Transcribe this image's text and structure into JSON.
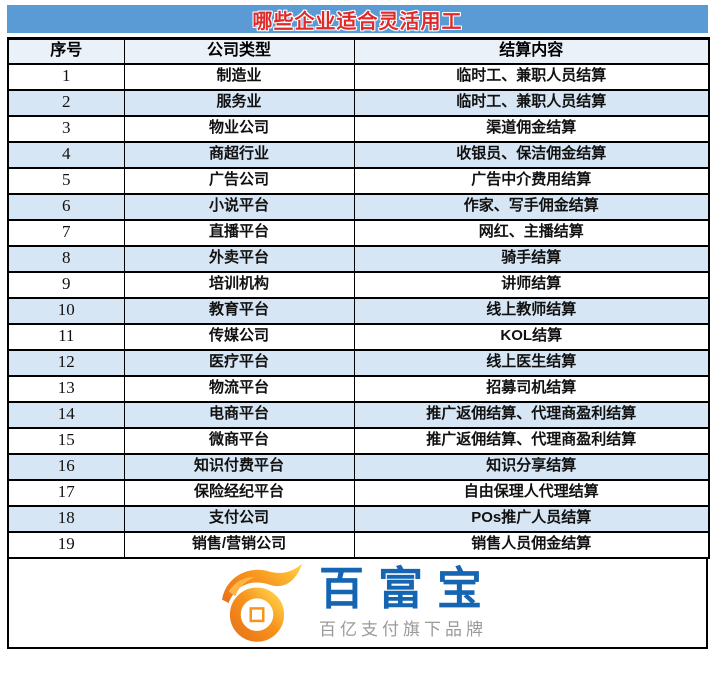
{
  "title": "哪些企业适合灵活用工",
  "colors": {
    "banner_bg": "#5B9BD5",
    "banner_text": "#E02A2A",
    "header_bg": "#EAF1F9",
    "row_alt_bg": "#D7E6F4",
    "border": "#000000",
    "brand_blue": "#1565B2",
    "slogan_gray": "#9A9A9A",
    "coin_orange": "#F7941D",
    "coin_gold": "#FFC93C"
  },
  "table": {
    "headers": [
      "序号",
      "公司类型",
      "结算内容"
    ],
    "rows": [
      [
        "1",
        "制造业",
        "临时工、兼职人员结算"
      ],
      [
        "2",
        "服务业",
        "临时工、兼职人员结算"
      ],
      [
        "3",
        "物业公司",
        "渠道佣金结算"
      ],
      [
        "4",
        "商超行业",
        "收银员、保洁佣金结算"
      ],
      [
        "5",
        "广告公司",
        "广告中介费用结算"
      ],
      [
        "6",
        "小说平台",
        "作家、写手佣金结算"
      ],
      [
        "7",
        "直播平台",
        "网红、主播结算"
      ],
      [
        "8",
        "外卖平台",
        "骑手结算"
      ],
      [
        "9",
        "培训机构",
        "讲师结算"
      ],
      [
        "10",
        "教育平台",
        "线上教师结算"
      ],
      [
        "11",
        "传媒公司",
        "KOL结算"
      ],
      [
        "12",
        "医疗平台",
        "线上医生结算"
      ],
      [
        "13",
        "物流平台",
        "招募司机结算"
      ],
      [
        "14",
        "电商平台",
        "推广返佣结算、代理商盈利结算"
      ],
      [
        "15",
        "微商平台",
        "推广返佣结算、代理商盈利结算"
      ],
      [
        "16",
        "知识付费平台",
        "知识分享结算"
      ],
      [
        "17",
        "保险经纪平台",
        "自由保理人代理结算"
      ],
      [
        "18",
        "支付公司",
        "POs推广人员结算"
      ],
      [
        "19",
        "销售/营销公司",
        "销售人员佣金结算"
      ]
    ]
  },
  "logo": {
    "icon": "coin-with-flame-icon",
    "brand": "百富宝",
    "slogan": "百亿支付旗下品牌"
  }
}
